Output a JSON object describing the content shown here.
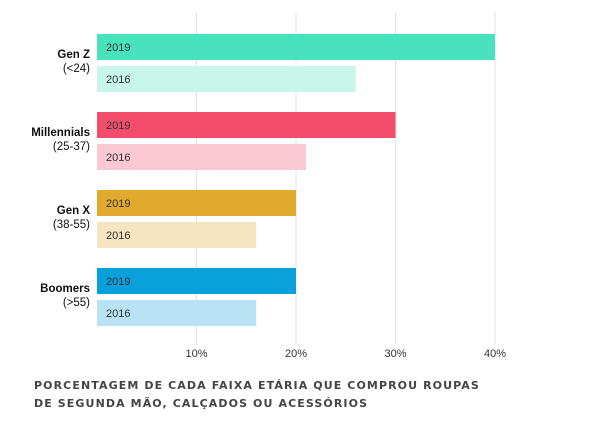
{
  "chart_data": {
    "type": "bar",
    "orientation": "horizontal",
    "groups": [
      {
        "name": "Gen Z",
        "range": "(<24)",
        "bars": [
          {
            "year": "2019",
            "value": 40,
            "color": "#48e2bd"
          },
          {
            "year": "2016",
            "value": 26,
            "color": "#c8f6ea"
          }
        ]
      },
      {
        "name": "Millennials",
        "range": "(25-37)",
        "bars": [
          {
            "year": "2019",
            "value": 30,
            "color": "#f34d6c"
          },
          {
            "year": "2016",
            "value": 21,
            "color": "#fbc8d3"
          }
        ]
      },
      {
        "name": "Gen X",
        "range": "(38-55)",
        "bars": [
          {
            "year": "2019",
            "value": 20,
            "color": "#e2a92f"
          },
          {
            "year": "2016",
            "value": 16,
            "color": "#f6e5c0"
          }
        ]
      },
      {
        "name": "Boomers",
        "range": "(>55)",
        "bars": [
          {
            "year": "2019",
            "value": 20,
            "color": "#0aa0dc"
          },
          {
            "year": "2016",
            "value": 16,
            "color": "#b7e3f4"
          }
        ]
      }
    ],
    "xticks": [
      10,
      20,
      30,
      40
    ],
    "xtick_labels": [
      "10%",
      "20%",
      "30%",
      "40%"
    ],
    "xlim": [
      0,
      40
    ],
    "grid": true,
    "title": ""
  },
  "caption": {
    "line1": "PORCENTAGEM DE CADA FAIXA ETÁRIA QUE COMPROU ROUPAS",
    "line2": "DE SEGUNDA MÃO, CALÇADOS OU ACESSÓRIOS"
  }
}
